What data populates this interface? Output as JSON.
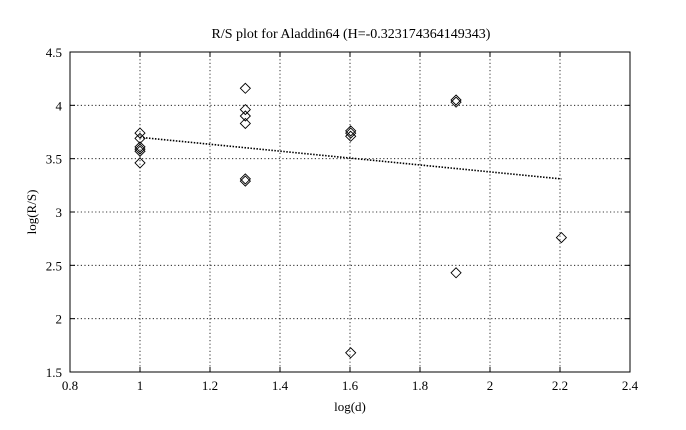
{
  "chart_data": {
    "type": "scatter",
    "title": "R/S plot for Aladdin64 (H=-0.323174364149343)",
    "xlabel": "log(d)",
    "ylabel": "log(R/S)",
    "xlim": [
      0.8,
      2.4
    ],
    "ylim": [
      1.5,
      4.5
    ],
    "xticks": [
      0.8,
      1,
      1.2,
      1.4,
      1.6,
      1.8,
      2,
      2.2,
      2.4
    ],
    "xtick_labels": [
      "0.8",
      "1",
      "1.2",
      "1.4",
      "1.6",
      "1.8",
      "2",
      "2.2",
      "2.4"
    ],
    "yticks": [
      1.5,
      2,
      2.5,
      3,
      3.5,
      4,
      4.5
    ],
    "ytick_labels": [
      "1.5",
      "2",
      "2.5",
      "3",
      "3.5",
      "4",
      "4.5"
    ],
    "grid": true,
    "marker": "diamond",
    "series": [
      {
        "points": [
          [
            1.0,
            3.74
          ],
          [
            1.0,
            3.69
          ],
          [
            1.0,
            3.61
          ],
          [
            1.0,
            3.59
          ],
          [
            1.0,
            3.57
          ],
          [
            1.0,
            3.46
          ],
          [
            1.301,
            4.16
          ],
          [
            1.301,
            3.96
          ],
          [
            1.301,
            3.9
          ],
          [
            1.301,
            3.83
          ],
          [
            1.301,
            3.31
          ],
          [
            1.301,
            3.29
          ],
          [
            1.602,
            3.76
          ],
          [
            1.602,
            3.74
          ],
          [
            1.602,
            3.71
          ],
          [
            1.602,
            1.68
          ],
          [
            1.903,
            4.05
          ],
          [
            1.903,
            4.03
          ],
          [
            1.903,
            2.43
          ],
          [
            2.204,
            2.76
          ]
        ]
      }
    ],
    "fit_line": {
      "style": "dotted",
      "points": [
        [
          1.0,
          3.7
        ],
        [
          2.204,
          3.31
        ]
      ]
    }
  }
}
